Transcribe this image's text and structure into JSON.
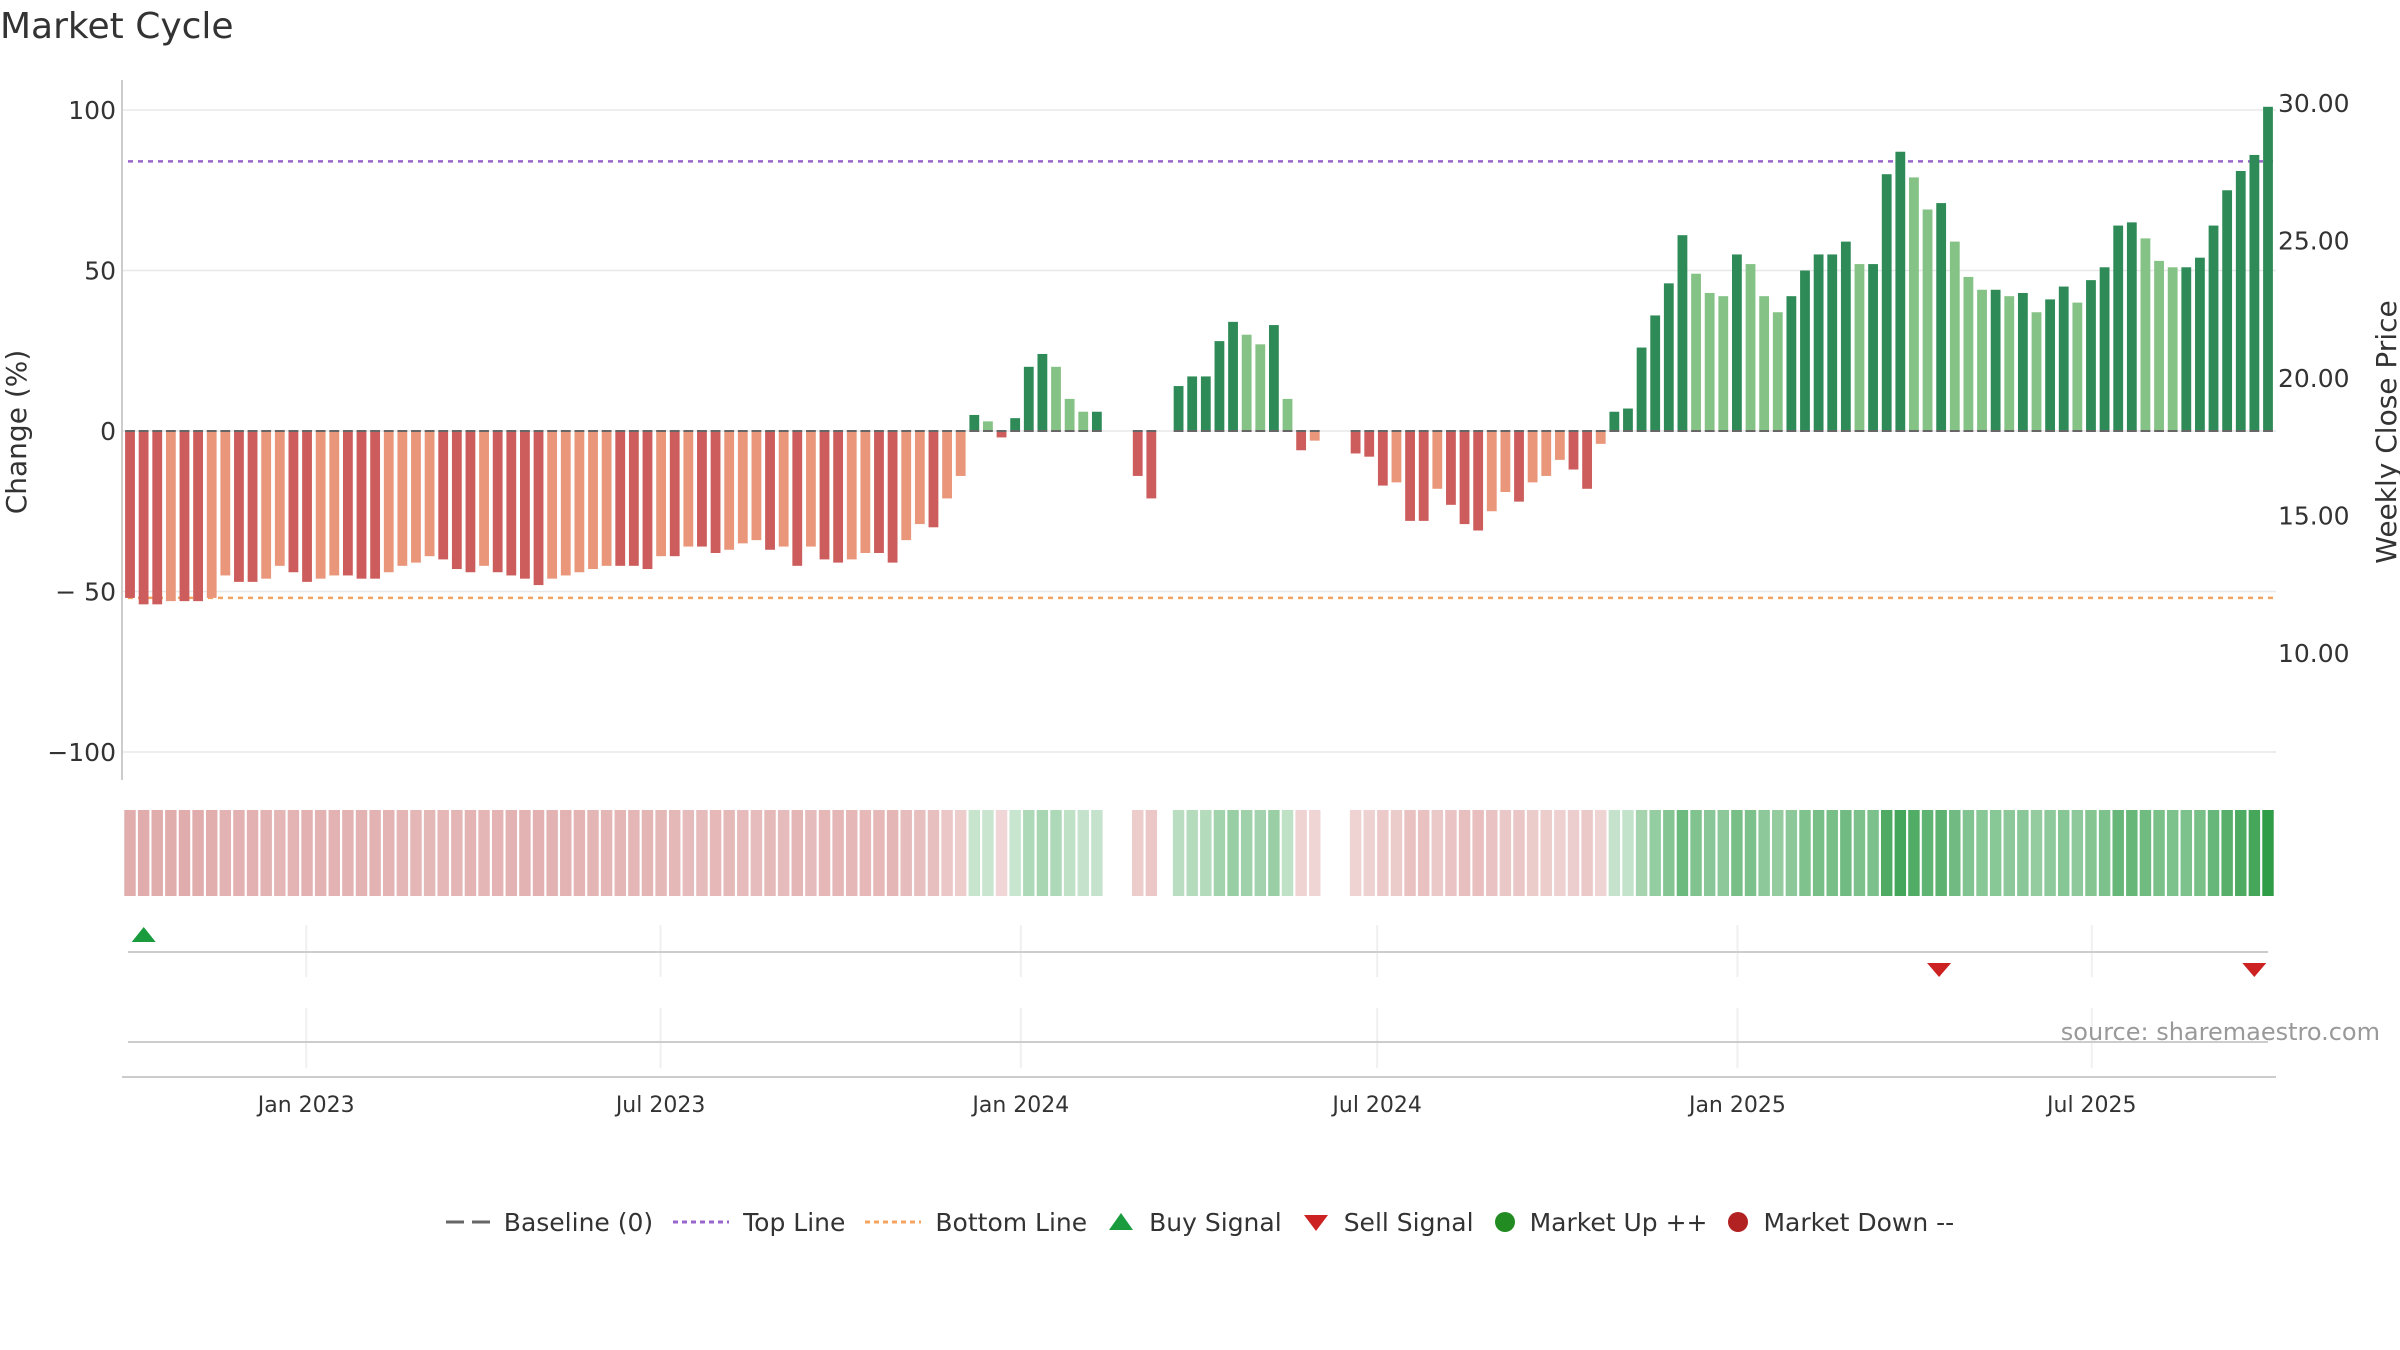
{
  "title": "Market Cycle",
  "source_text": "source: sharemaestro.com",
  "chart_data": {
    "type": "bar",
    "title": "Market Cycle",
    "ylabel_left": "Change (%)",
    "ylabel_right": "Weekly Close Price",
    "ylim_left": [
      -100,
      100
    ],
    "yticks_left": [
      100,
      50,
      0,
      -50,
      -100
    ],
    "ytick_labels_left": [
      "100",
      "50",
      "0",
      "− 50",
      "−100"
    ],
    "yticks_right": [
      30,
      25,
      20,
      15,
      10
    ],
    "ytick_labels_right": [
      "30.00",
      "25.00",
      "20.00",
      "15.00",
      "10.00"
    ],
    "x_start": "2022-10-03",
    "x_end": "2025-09-29",
    "x_tick_dates": [
      "2023-01-01",
      "2023-07-01",
      "2024-01-01",
      "2024-07-01",
      "2025-01-01",
      "2025-07-01"
    ],
    "x_tick_labels": [
      "Jan 2023",
      "Jul 2023",
      "Jan 2024",
      "Jul 2024",
      "Jan 2025",
      "Jul 2025"
    ],
    "baseline": 0,
    "top_line": 84,
    "bottom_line": -52,
    "weekly_change": [
      -52,
      -54,
      -54,
      -53,
      -53,
      -53,
      -52,
      -45,
      -47,
      -47,
      -46,
      -42,
      -44,
      -47,
      -46,
      -45,
      -45,
      -46,
      -46,
      -44,
      -42,
      -41,
      -39,
      -40,
      -43,
      -44,
      -42,
      -44,
      -45,
      -46,
      -48,
      -46,
      -45,
      -44,
      -43,
      -42,
      -42,
      -42,
      -43,
      -39,
      -39,
      -36,
      -36,
      -38,
      -37,
      -35,
      -34,
      -37,
      -36,
      -42,
      -36,
      -40,
      -41,
      -40,
      -38,
      -38,
      -41,
      -34,
      -29,
      -30,
      -21,
      -14,
      5,
      3,
      -2,
      4,
      20,
      24,
      20,
      10,
      6,
      6,
      null,
      null,
      -14,
      -21,
      null,
      14,
      17,
      17,
      28,
      34,
      30,
      27,
      33,
      10,
      -6,
      -3,
      null,
      null,
      -7,
      -8,
      -17,
      -16,
      -28,
      -28,
      -18,
      -23,
      -29,
      -31,
      -25,
      -19,
      -22,
      -16,
      -14,
      -9,
      -12,
      -18,
      -4,
      6,
      7,
      26,
      36,
      46,
      61,
      49,
      43,
      42,
      55,
      52,
      42,
      37,
      42,
      50,
      55,
      55,
      59,
      52,
      52,
      80,
      87,
      79,
      69,
      71,
      59,
      48,
      44,
      44,
      42,
      43,
      37,
      41,
      45,
      40,
      47,
      51,
      64,
      65,
      60,
      53,
      51,
      51,
      54,
      64,
      75,
      81,
      86,
      101
    ],
    "weekly_close_price": [
      null
    ],
    "buy_signals": [
      "2022-10-10"
    ],
    "sell_signals": [
      "2025-04-14",
      "2025-09-22"
    ],
    "legend_position": "bottom-center"
  },
  "legend": [
    {
      "label": "Baseline (0)",
      "icon": "dash-line-gray"
    },
    {
      "label": "Top Line",
      "icon": "dotted-line-purple"
    },
    {
      "label": "Bottom Line",
      "icon": "dotted-line-orange"
    },
    {
      "label": "Buy Signal",
      "icon": "triangle-up-green"
    },
    {
      "label": "Sell Signal",
      "icon": "triangle-down-red"
    },
    {
      "label": "Market Up ++",
      "icon": "circle-green"
    },
    {
      "label": "Market Down --",
      "icon": "circle-red"
    }
  ],
  "colors": {
    "pos_dark": "#2e8b57",
    "pos_light": "#85c285",
    "neg_dark": "#cd5c5c",
    "neg_light": "#e9967a",
    "top_line": "#9966cc",
    "bottom_line": "#f4a460",
    "buy": "#1a9c3e",
    "sell": "#cc2222",
    "market_up": "#228b22",
    "market_down": "#b22222",
    "grid": "#e8e8e8"
  }
}
